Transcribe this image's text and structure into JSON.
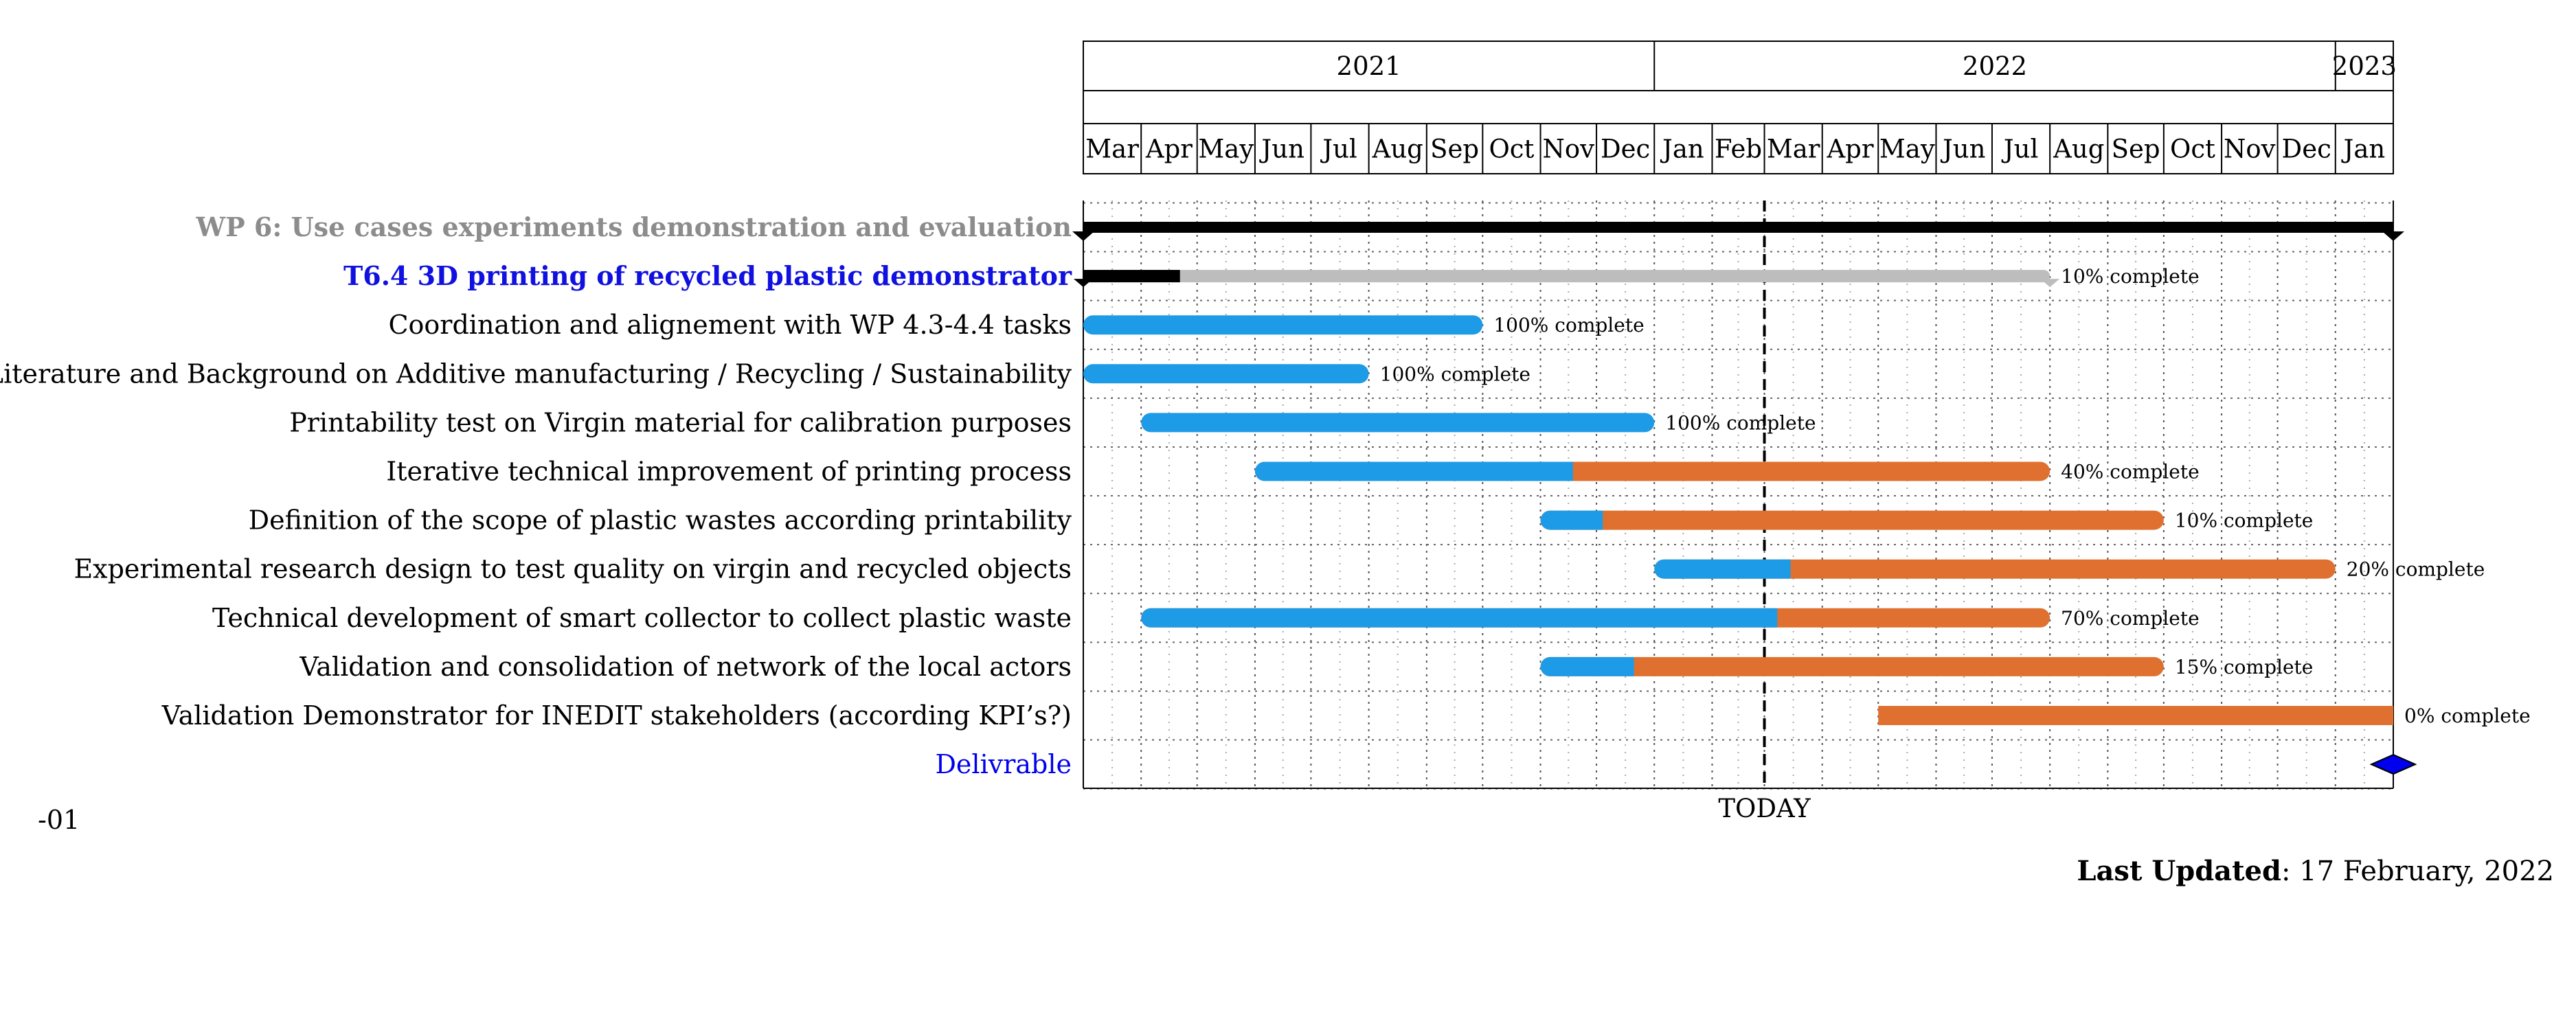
{
  "chart_data": {
    "type": "gantt",
    "title": "",
    "today": "2022-03-01",
    "today_label": "TODAY",
    "x_range": [
      "2021-03-01",
      "2023-02-01"
    ],
    "years": [
      {
        "label": "2021",
        "start": "2021-03-01",
        "end": "2022-01-01"
      },
      {
        "label": "2022",
        "start": "2022-01-01",
        "end": "2023-01-01"
      },
      {
        "label": "2023",
        "start": "2023-01-01",
        "end": "2023-02-01"
      }
    ],
    "months": [
      {
        "label": "Mar",
        "start": "2021-03-01"
      },
      {
        "label": "Apr",
        "start": "2021-04-01"
      },
      {
        "label": "May",
        "start": "2021-05-01"
      },
      {
        "label": "Jun",
        "start": "2021-06-01"
      },
      {
        "label": "Jul",
        "start": "2021-07-01"
      },
      {
        "label": "Aug",
        "start": "2021-08-01"
      },
      {
        "label": "Sep",
        "start": "2021-09-01"
      },
      {
        "label": "Oct",
        "start": "2021-10-01"
      },
      {
        "label": "Nov",
        "start": "2021-11-01"
      },
      {
        "label": "Dec",
        "start": "2021-12-01"
      },
      {
        "label": "Jan",
        "start": "2022-01-01"
      },
      {
        "label": "Feb",
        "start": "2022-02-01"
      },
      {
        "label": "Mar",
        "start": "2022-03-01"
      },
      {
        "label": "Apr",
        "start": "2022-04-01"
      },
      {
        "label": "May",
        "start": "2022-05-01"
      },
      {
        "label": "Jun",
        "start": "2022-06-01"
      },
      {
        "label": "Jul",
        "start": "2022-07-01"
      },
      {
        "label": "Aug",
        "start": "2022-08-01"
      },
      {
        "label": "Sep",
        "start": "2022-09-01"
      },
      {
        "label": "Oct",
        "start": "2022-10-01"
      },
      {
        "label": "Nov",
        "start": "2022-11-01"
      },
      {
        "label": "Dec",
        "start": "2022-12-01"
      },
      {
        "label": "Jan",
        "start": "2023-01-01"
      }
    ],
    "tasks": [
      {
        "label": "WP 6: Use cases experiments demonstration and evaluation",
        "kind": "wp",
        "start": "2021-03-01",
        "end": "2023-02-01",
        "complete": null,
        "complete_label": ""
      },
      {
        "label": "T6.4 3D printing of recycled plastic demonstrator",
        "kind": "task",
        "start": "2021-03-01",
        "end": "2022-08-01",
        "complete": 10,
        "complete_label": "10% complete"
      },
      {
        "label": "Coordination and alignement with WP 4.3-4.4 tasks",
        "kind": "sub",
        "start": "2021-03-01",
        "end": "2021-10-01",
        "complete": 100,
        "complete_label": "100% complete"
      },
      {
        "label": "Literature and Background on Additive manufacturing / Recycling / Sustainability",
        "kind": "sub",
        "start": "2021-03-01",
        "end": "2021-08-01",
        "complete": 100,
        "complete_label": "100% complete"
      },
      {
        "label": "Printability test on Virgin material for calibration purposes",
        "kind": "sub",
        "start": "2021-04-01",
        "end": "2022-01-01",
        "complete": 100,
        "complete_label": "100% complete"
      },
      {
        "label": "Iterative technical improvement of printing process",
        "kind": "sub",
        "start": "2021-06-01",
        "end": "2022-08-01",
        "complete": 40,
        "complete_label": "40% complete"
      },
      {
        "label": "Definition of the scope of plastic wastes according printability ",
        "kind": "sub",
        "start": "2021-11-01",
        "end": "2022-10-01",
        "complete": 10,
        "complete_label": "10% complete"
      },
      {
        "label": "Experimental research design to test quality on virgin and recycled objects",
        "kind": "sub",
        "start": "2022-01-01",
        "end": "2023-01-01",
        "complete": 20,
        "complete_label": "20% complete"
      },
      {
        "label": "Technical development of smart collector to collect plastic waste",
        "kind": "sub",
        "start": "2021-04-01",
        "end": "2022-08-01",
        "complete": 70,
        "complete_label": "70% complete"
      },
      {
        "label": "Validation and consolidation of network of the local actors",
        "kind": "sub",
        "start": "2021-11-01",
        "end": "2022-10-01",
        "complete": 15,
        "complete_label": "15% complete"
      },
      {
        "label": "Validation Demonstrator for INEDIT stakeholders (according KPI’s?)",
        "kind": "sub",
        "start": "2022-05-01",
        "end": "2023-02-01",
        "complete": 0,
        "complete_label": "0% complete"
      },
      {
        "label": "Delivrable",
        "kind": "milestone",
        "start": "2023-02-01",
        "end": "2023-02-01",
        "complete": null,
        "complete_label": ""
      }
    ],
    "colors": {
      "done": "#1e9be6",
      "remaining": "#e07030",
      "task_done": "#000000",
      "task_remaining": "#bdbdbd",
      "wp_bar": "#000000",
      "wp_label": "#8c8c8c",
      "task_label": "#1010e0",
      "milestone": "#0000ee",
      "milestone_label": "#0000ee"
    }
  },
  "footer": {
    "stray_label": "-01",
    "last_updated_label": "Last Updated",
    "last_updated_value": ": 17 February, 2022"
  }
}
